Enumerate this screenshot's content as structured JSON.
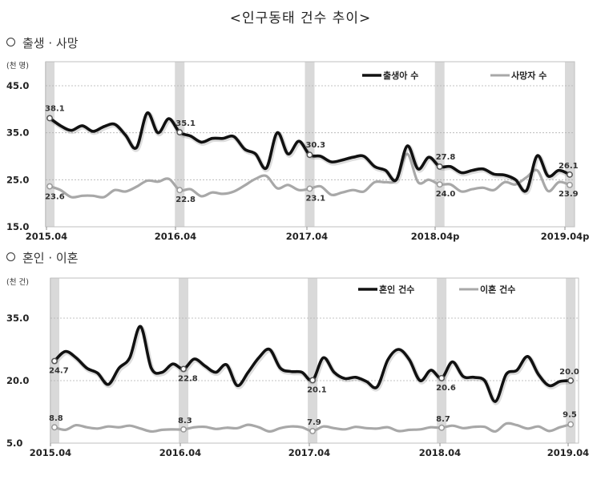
{
  "page": {
    "title": "<인구동태 건수 추이>",
    "sections": [
      {
        "label": "출생 · 사망"
      },
      {
        "label": "혼인 · 이혼"
      }
    ]
  },
  "colors": {
    "primary_series": "#111111",
    "secondary_series": "#a8a8a8",
    "highlight_band": "#d9d9d9",
    "gridline": "#b0b0b0",
    "frame": "#bfbfbf"
  },
  "chart_data": [
    {
      "type": "line",
      "title": "출생 · 사망",
      "ylabel": "(천 명)",
      "ylim": [
        15.0,
        45.0
      ],
      "yticks": [
        "15.0",
        "25.0",
        "35.0",
        "45.0"
      ],
      "xtick_labels": [
        "2015.04",
        "2016.04",
        "2017.04",
        "2018.04p",
        "2019.04p"
      ],
      "grid": true,
      "legend_position": "top-right",
      "x": [
        "2015.04",
        "2015.05",
        "2015.06",
        "2015.07",
        "2015.08",
        "2015.09",
        "2015.10",
        "2015.11",
        "2015.12",
        "2016.01",
        "2016.02",
        "2016.03",
        "2016.04",
        "2016.05",
        "2016.06",
        "2016.07",
        "2016.08",
        "2016.09",
        "2016.10",
        "2016.11",
        "2016.12",
        "2017.01",
        "2017.02",
        "2017.03",
        "2017.04",
        "2017.05",
        "2017.06",
        "2017.07",
        "2017.08",
        "2017.09",
        "2017.10",
        "2017.11",
        "2017.12",
        "2018.01",
        "2018.02",
        "2018.03",
        "2018.04",
        "2018.05",
        "2018.06",
        "2018.07",
        "2018.08",
        "2018.09",
        "2018.10",
        "2018.11",
        "2018.12",
        "2019.01",
        "2019.02",
        "2019.03",
        "2019.04"
      ],
      "series": [
        {
          "name": "출생아 수",
          "color": "#111111",
          "values": [
            38.1,
            36.5,
            35.5,
            36.5,
            35.3,
            36.3,
            36.8,
            34.5,
            31.8,
            39.2,
            35.0,
            38.0,
            35.1,
            34.3,
            33.0,
            33.8,
            33.8,
            34.2,
            31.5,
            30.5,
            27.5,
            35.0,
            30.5,
            33.2,
            30.3,
            30.0,
            28.8,
            29.2,
            29.8,
            30.0,
            27.8,
            27.0,
            25.0,
            32.2,
            27.3,
            29.8,
            27.8,
            27.8,
            26.5,
            27.0,
            27.3,
            26.2,
            26.0,
            25.0,
            22.7,
            30.1,
            25.8,
            27.0,
            26.1
          ]
        },
        {
          "name": "사망자 수",
          "color": "#a8a8a8",
          "values": [
            23.6,
            22.8,
            21.3,
            21.6,
            21.6,
            21.3,
            22.8,
            22.5,
            23.5,
            24.8,
            24.6,
            25.2,
            22.8,
            23.0,
            21.5,
            22.3,
            22.0,
            22.5,
            23.8,
            25.2,
            25.8,
            23.2,
            23.9,
            22.8,
            23.1,
            23.6,
            21.8,
            22.3,
            22.8,
            22.5,
            24.5,
            24.5,
            25.0,
            30.5,
            24.5,
            25.0,
            24.0,
            24.0,
            22.5,
            23.0,
            23.3,
            22.8,
            24.5,
            24.0,
            25.5,
            27.0,
            22.6,
            24.5,
            23.9
          ]
        }
      ],
      "annotations": [
        {
          "x": "2015.04",
          "series": "출생아 수",
          "label": "38.1"
        },
        {
          "x": "2016.04",
          "series": "출생아 수",
          "label": "35.1"
        },
        {
          "x": "2017.04",
          "series": "출생아 수",
          "label": "30.3"
        },
        {
          "x": "2018.04",
          "series": "출생아 수",
          "label": "27.8"
        },
        {
          "x": "2019.04",
          "series": "출생아 수",
          "label": "26.1"
        },
        {
          "x": "2015.04",
          "series": "사망자 수",
          "label": "23.6"
        },
        {
          "x": "2016.04",
          "series": "사망자 수",
          "label": "22.8"
        },
        {
          "x": "2017.04",
          "series": "사망자 수",
          "label": "23.1"
        },
        {
          "x": "2018.04",
          "series": "사망자 수",
          "label": "24.0"
        },
        {
          "x": "2019.04",
          "series": "사망자 수",
          "label": "23.9"
        }
      ],
      "highlight_bands": [
        "2015.04",
        "2016.04",
        "2017.04",
        "2018.04",
        "2019.04"
      ]
    },
    {
      "type": "line",
      "title": "혼인 · 이혼",
      "ylabel": "(천 건)",
      "ylim": [
        5.0,
        40.0
      ],
      "yticks": [
        "5.0",
        "20.0",
        "35.0"
      ],
      "xtick_labels": [
        "2015.04",
        "2016.04",
        "2017.04",
        "2018.04",
        "2019.04"
      ],
      "grid": true,
      "legend_position": "top-right",
      "x": [
        "2015.04",
        "2015.05",
        "2015.06",
        "2015.07",
        "2015.08",
        "2015.09",
        "2015.10",
        "2015.11",
        "2015.12",
        "2016.01",
        "2016.02",
        "2016.03",
        "2016.04",
        "2016.05",
        "2016.06",
        "2016.07",
        "2016.08",
        "2016.09",
        "2016.10",
        "2016.11",
        "2016.12",
        "2017.01",
        "2017.02",
        "2017.03",
        "2017.04",
        "2017.05",
        "2017.06",
        "2017.07",
        "2017.08",
        "2017.09",
        "2017.10",
        "2017.11",
        "2017.12",
        "2018.01",
        "2018.02",
        "2018.03",
        "2018.04",
        "2018.05",
        "2018.06",
        "2018.07",
        "2018.08",
        "2018.09",
        "2018.10",
        "2018.11",
        "2018.12",
        "2019.01",
        "2019.02",
        "2019.03",
        "2019.04"
      ],
      "series": [
        {
          "name": "혼인 건수",
          "color": "#111111",
          "values": [
            24.7,
            27.0,
            25.5,
            23.0,
            21.8,
            19.1,
            23.0,
            25.5,
            33.0,
            23.0,
            22.0,
            24.0,
            22.8,
            25.2,
            23.5,
            22.0,
            23.8,
            18.8,
            22.0,
            25.5,
            27.5,
            23.0,
            22.2,
            22.0,
            20.1,
            25.5,
            22.0,
            20.5,
            20.8,
            19.8,
            18.5,
            25.0,
            27.5,
            25.0,
            20.0,
            22.5,
            20.6,
            24.5,
            21.0,
            20.8,
            20.0,
            15.0,
            21.5,
            22.5,
            25.8,
            21.5,
            18.8,
            19.8,
            20.0
          ]
        },
        {
          "name": "이혼 건수",
          "color": "#a8a8a8",
          "values": [
            8.8,
            8.2,
            9.3,
            8.8,
            8.5,
            9.0,
            8.8,
            9.2,
            8.5,
            7.8,
            8.2,
            8.3,
            8.3,
            8.8,
            8.9,
            8.4,
            8.7,
            8.6,
            9.4,
            8.8,
            7.8,
            8.6,
            9.0,
            8.8,
            7.9,
            9.0,
            8.6,
            8.3,
            8.9,
            8.6,
            8.5,
            8.8,
            7.9,
            8.2,
            8.3,
            8.8,
            8.7,
            9.2,
            8.6,
            8.9,
            8.9,
            7.8,
            9.7,
            9.3,
            8.5,
            9.0,
            7.9,
            8.8,
            9.5
          ]
        }
      ],
      "annotations": [
        {
          "x": "2015.04",
          "series": "혼인 건수",
          "label": "24.7"
        },
        {
          "x": "2016.04",
          "series": "혼인 건수",
          "label": "22.8"
        },
        {
          "x": "2017.04",
          "series": "혼인 건수",
          "label": "20.1"
        },
        {
          "x": "2018.04",
          "series": "혼인 건수",
          "label": "20.6"
        },
        {
          "x": "2019.04",
          "series": "혼인 건수",
          "label": "20.0"
        },
        {
          "x": "2015.04",
          "series": "이혼 건수",
          "label": "8.8"
        },
        {
          "x": "2016.04",
          "series": "이혼 건수",
          "label": "8.3"
        },
        {
          "x": "2017.04",
          "series": "이혼 건수",
          "label": "7.9"
        },
        {
          "x": "2018.04",
          "series": "이혼 건수",
          "label": "8.7"
        },
        {
          "x": "2019.04",
          "series": "이혼 건수",
          "label": "9.5"
        }
      ],
      "highlight_bands": [
        "2015.04",
        "2016.04",
        "2017.04",
        "2018.04",
        "2019.04"
      ]
    }
  ]
}
